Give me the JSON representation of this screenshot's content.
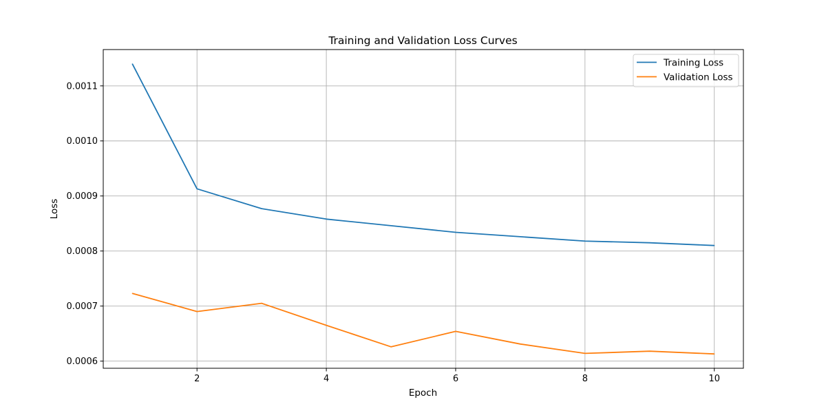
{
  "chart_data": {
    "type": "line",
    "title": "Training and Validation Loss Curves",
    "xlabel": "Epoch",
    "ylabel": "Loss",
    "x": [
      1,
      2,
      3,
      4,
      5,
      6,
      7,
      8,
      9,
      10
    ],
    "xlim": [
      0.55,
      10.45
    ],
    "ylim": [
      0.000587,
      0.001166
    ],
    "xticks": [
      2,
      4,
      6,
      8,
      10
    ],
    "xtick_labels": [
      "2",
      "4",
      "6",
      "8",
      "10"
    ],
    "yticks": [
      0.0006,
      0.0007,
      0.0008,
      0.0009,
      0.001,
      0.0011
    ],
    "ytick_labels": [
      "0.0006",
      "0.0007",
      "0.0008",
      "0.0009",
      "0.0010",
      "0.0011"
    ],
    "grid": true,
    "legend_position": "top-right",
    "series": [
      {
        "name": "Training Loss",
        "color": "#1f77b4",
        "values": [
          0.00114,
          0.000913,
          0.000877,
          0.000858,
          0.000846,
          0.000834,
          0.000826,
          0.000818,
          0.000815,
          0.00081
        ]
      },
      {
        "name": "Validation Loss",
        "color": "#ff7f0e",
        "values": [
          0.000723,
          0.00069,
          0.000705,
          0.000665,
          0.000626,
          0.000654,
          0.000631,
          0.000614,
          0.000618,
          0.000613
        ]
      }
    ]
  }
}
